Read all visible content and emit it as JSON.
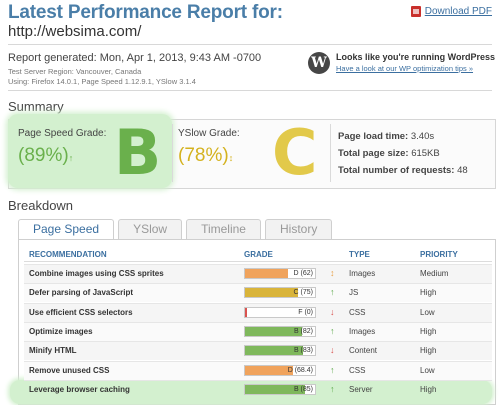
{
  "header": {
    "title": "Latest Performance Report for:",
    "url": "http://websima.com/",
    "download_pdf": "Download PDF"
  },
  "meta": {
    "generated": "Report generated: Mon, Apr 1, 2013, 9:43 AM -0700",
    "region": "Test Server Region: Vancouver, Canada",
    "using": "Using: Firefox 14.0.1, Page Speed 1.12.9.1, YSlow 3.1.4"
  },
  "wordpress": {
    "title": "Looks like you're running WordPress",
    "link": "Have a look at our WP optimization tips »"
  },
  "summary": {
    "heading": "Summary",
    "pagespeed": {
      "label": "Page Speed Grade:",
      "pct": "(89%)",
      "arrow": "↑",
      "letter": "B",
      "color": "#6ab04c"
    },
    "yslow": {
      "label": "YSlow Grade:",
      "pct": "(78%)",
      "arrow": "↕",
      "letter": "C",
      "color": "#d4b21f"
    },
    "stats": {
      "load_time_label": "Page load time:",
      "load_time": "3.40s",
      "size_label": "Total page size:",
      "size": "615KB",
      "requests_label": "Total number of requests:",
      "requests": "48"
    }
  },
  "breakdown": {
    "heading": "Breakdown",
    "tabs": [
      "Page Speed",
      "YSlow",
      "Timeline",
      "History"
    ],
    "active_tab": 0,
    "columns": [
      "RECOMMENDATION",
      "GRADE",
      "TYPE",
      "PRIORITY"
    ],
    "rows": [
      {
        "name": "Combine images using CSS sprites",
        "grade": "D (62)",
        "score": 62,
        "color": "#f0a35c",
        "arrow": "↕",
        "arrow_color": "#e8a24a",
        "type": "Images",
        "priority": "Medium"
      },
      {
        "name": "Defer parsing of JavaScript",
        "grade": "C (75)",
        "score": 75,
        "color": "#d9b43a",
        "arrow": "↑",
        "arrow_color": "#5aa848",
        "type": "JS",
        "priority": "High"
      },
      {
        "name": "Use efficient CSS selectors",
        "grade": "F (0)",
        "score": 0,
        "color": "#d9534f",
        "arrow": "↓",
        "arrow_color": "#d9534f",
        "type": "CSS",
        "priority": "Low"
      },
      {
        "name": "Optimize images",
        "grade": "B (82)",
        "score": 82,
        "color": "#7fb85c",
        "arrow": "↑",
        "arrow_color": "#5aa848",
        "type": "Images",
        "priority": "High"
      },
      {
        "name": "Minify HTML",
        "grade": "B (83)",
        "score": 83,
        "color": "#7fb85c",
        "arrow": "↓",
        "arrow_color": "#d9534f",
        "type": "Content",
        "priority": "High"
      },
      {
        "name": "Remove unused CSS",
        "grade": "D (68.4)",
        "score": 68.4,
        "color": "#f0a35c",
        "arrow": "↑",
        "arrow_color": "#5aa848",
        "type": "CSS",
        "priority": "Low"
      },
      {
        "name": "Leverage browser caching",
        "grade": "B (85)",
        "score": 85,
        "color": "#7fb85c",
        "arrow": "↑",
        "arrow_color": "#5aa848",
        "type": "Server",
        "priority": "High"
      }
    ]
  }
}
